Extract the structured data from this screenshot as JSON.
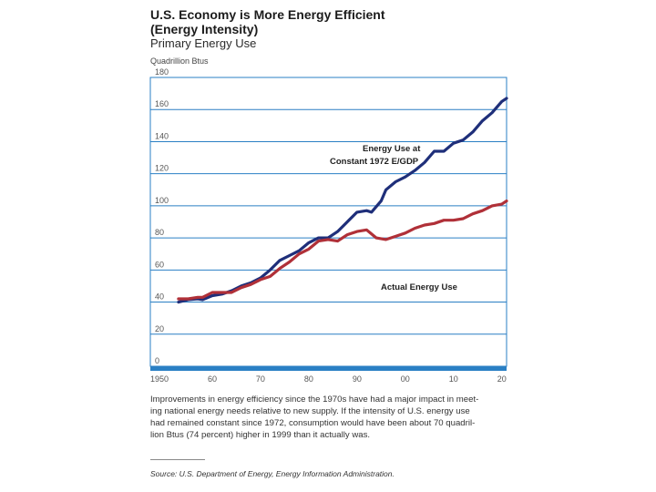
{
  "header": {
    "title_lines": [
      "U.S. Economy is More Energy Efficient",
      "(Energy Intensity)"
    ],
    "subtitle": "Primary Energy Use",
    "units": "Quadrillion Btus"
  },
  "chart_data": {
    "type": "line",
    "title": "U.S. Economy is More Energy Efficient (Energy Intensity)",
    "subtitle": "Primary Energy Use",
    "ylabel": "Quadrillion Btus",
    "xlabel": "",
    "xlim": [
      1950,
      2021
    ],
    "ylim": [
      0,
      180
    ],
    "y_ticks": [
      0,
      20,
      40,
      60,
      80,
      100,
      120,
      140,
      160,
      180
    ],
    "x_ticks": [
      {
        "value": 1950,
        "label": "1950"
      },
      {
        "value": 1960,
        "label": "60"
      },
      {
        "value": 1970,
        "label": "70"
      },
      {
        "value": 1980,
        "label": "80"
      },
      {
        "value": 1990,
        "label": "90"
      },
      {
        "value": 2000,
        "label": "00"
      },
      {
        "value": 2010,
        "label": "10"
      },
      {
        "value": 2020,
        "label": "20"
      }
    ],
    "grid": true,
    "series": [
      {
        "name": "Energy Use at Constant 1972 E/GDP",
        "color": "#1f2f7a",
        "x": [
          1953,
          1955,
          1957,
          1958,
          1960,
          1962,
          1964,
          1966,
          1968,
          1970,
          1972,
          1974,
          1976,
          1978,
          1980,
          1982,
          1984,
          1986,
          1988,
          1990,
          1992,
          1993,
          1995,
          1996,
          1998,
          2000,
          2002,
          2004,
          2006,
          2008,
          2010,
          2012,
          2014,
          2016,
          2018,
          2020,
          2021
        ],
        "values": [
          40,
          41.5,
          42,
          41.5,
          44,
          45,
          47,
          50,
          52,
          55,
          60,
          66,
          69,
          72,
          77,
          80,
          80,
          84,
          90,
          96,
          97,
          96,
          103,
          110,
          115,
          118,
          122,
          127,
          134,
          134,
          139,
          141,
          146,
          153,
          158,
          165,
          167
        ]
      },
      {
        "name": "Actual Energy Use",
        "color": "#b03038",
        "x": [
          1953,
          1955,
          1957,
          1958,
          1960,
          1962,
          1964,
          1966,
          1968,
          1970,
          1972,
          1974,
          1976,
          1978,
          1980,
          1982,
          1984,
          1986,
          1988,
          1990,
          1992,
          1994,
          1996,
          1998,
          2000,
          2002,
          2004,
          2006,
          2008,
          2010,
          2012,
          2014,
          2016,
          2018,
          2020,
          2021
        ],
        "values": [
          42,
          42,
          43,
          43,
          46,
          46,
          46,
          49,
          51,
          54,
          56,
          61,
          65,
          70,
          73,
          78,
          79,
          78,
          82,
          84,
          85,
          80,
          79,
          81,
          83,
          86,
          88,
          89,
          91,
          91,
          92,
          95,
          97,
          100,
          101,
          103
        ]
      }
    ],
    "annotations": [
      {
        "lines": [
          "Energy Use at",
          "Constant 1972 E/GDP"
        ],
        "series": "Energy Use at Constant 1972 E/GDP"
      },
      {
        "lines": [
          "Actual Energy Use"
        ],
        "series": "Actual Energy Use"
      }
    ]
  },
  "caption": {
    "lines": [
      "Improvements in energy efficiency since the 1970s have had a major impact in meet-",
      "ing national energy needs relative to new supply. If the intensity of U.S. energy use",
      "had remained constant since 1972, consumption would have been about 70 quadril-",
      "lion Btus (74 percent) higher in 1999 than it actually was."
    ]
  },
  "source": "Source: U.S. Department of Energy, Energy Information Administration."
}
